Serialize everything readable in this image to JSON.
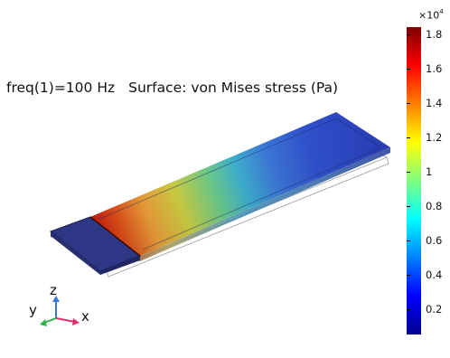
{
  "plot": {
    "parameter_label": "freq(1)=100 Hz",
    "title": "Surface: von Mises stress (Pa)"
  },
  "colorbar": {
    "exponent_label": "×10",
    "exponent_power": "4",
    "ticks": [
      "1.8",
      "1.6",
      "1.4",
      "1.2",
      "1",
      "0.8",
      "0.6",
      "0.4",
      "0.2"
    ],
    "tick_values": [
      1.8,
      1.6,
      1.4,
      1.2,
      1.0,
      0.8,
      0.6,
      0.4,
      0.2
    ],
    "range": [
      0.05,
      1.84
    ],
    "colormap": [
      "#00008f",
      "#0000ff",
      "#0080ff",
      "#00ffff",
      "#80ff80",
      "#ffff00",
      "#ff8000",
      "#ff0000",
      "#800000"
    ]
  },
  "axes_triad": {
    "z_label": "z",
    "y_label": "y",
    "x_label": "x",
    "z_color": "#3a78d6",
    "y_color": "#2bb24c",
    "x_color": "#e0306a"
  }
}
